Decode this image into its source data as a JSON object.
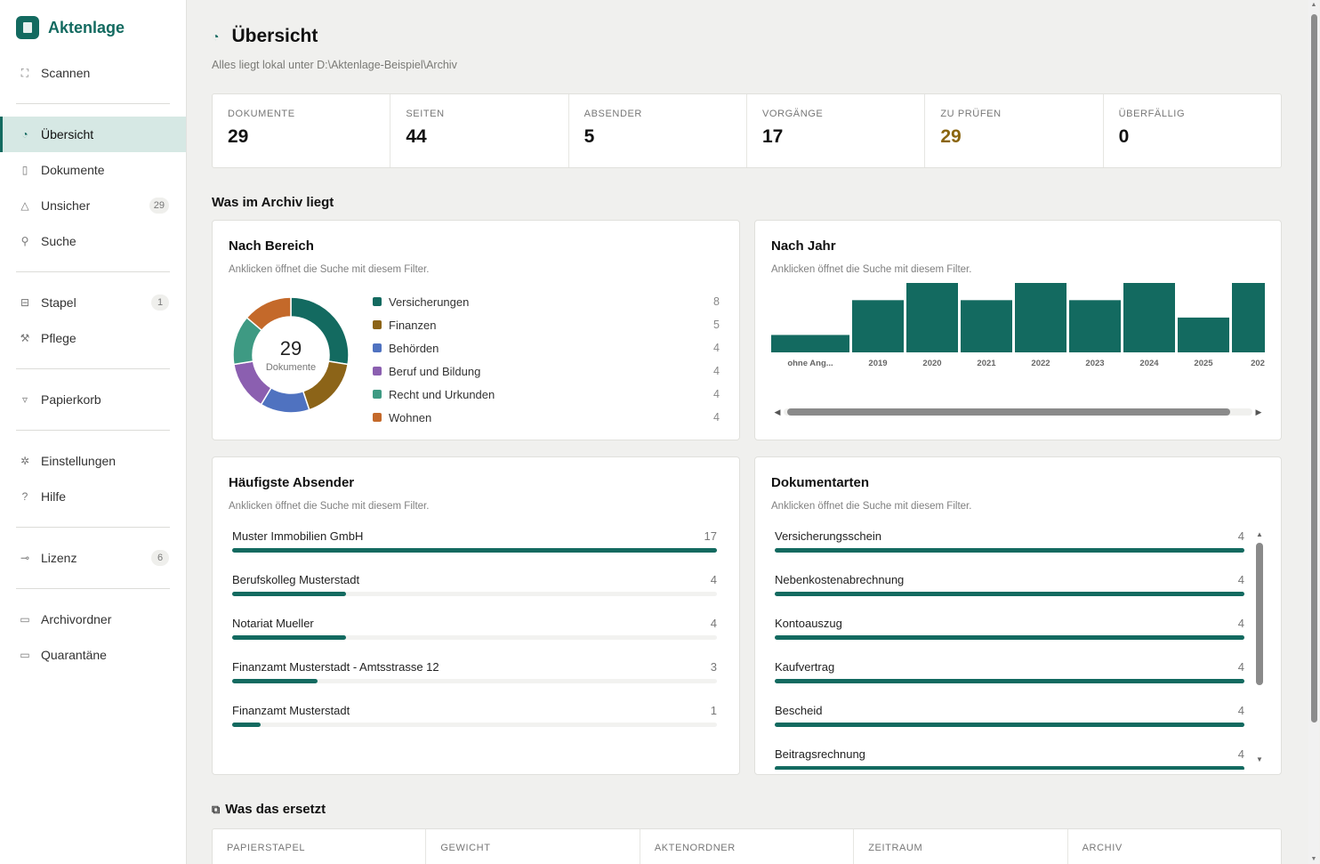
{
  "app": {
    "name": "Aktenlage"
  },
  "sidebar": {
    "items": [
      {
        "label": "Scannen",
        "icon": "scan-icon",
        "glyph": "⛶",
        "badge": ""
      },
      {
        "label": "Übersicht",
        "icon": "pie-chart-icon",
        "glyph": "◔",
        "badge": "",
        "active": true
      },
      {
        "label": "Dokumente",
        "icon": "document-icon",
        "glyph": "▯",
        "badge": ""
      },
      {
        "label": "Unsicher",
        "icon": "warning-icon",
        "glyph": "△",
        "badge": "29"
      },
      {
        "label": "Suche",
        "icon": "search-icon",
        "glyph": "⚲",
        "badge": ""
      },
      {
        "label": "Stapel",
        "icon": "inbox-icon",
        "glyph": "⊟",
        "badge": "1"
      },
      {
        "label": "Pflege",
        "icon": "wrench-icon",
        "glyph": "⚒",
        "badge": ""
      },
      {
        "label": "Papierkorb",
        "icon": "trash-icon",
        "glyph": "▿",
        "badge": ""
      },
      {
        "label": "Einstellungen",
        "icon": "gear-icon",
        "glyph": "✲",
        "badge": ""
      },
      {
        "label": "Hilfe",
        "icon": "help-icon",
        "glyph": "?",
        "badge": ""
      },
      {
        "label": "Lizenz",
        "icon": "key-icon",
        "glyph": "⊸",
        "badge": "6"
      },
      {
        "label": "Archivordner",
        "icon": "folder-icon",
        "glyph": "▭",
        "badge": ""
      },
      {
        "label": "Quarantäne",
        "icon": "folder-icon",
        "glyph": "▭",
        "badge": ""
      }
    ]
  },
  "header": {
    "title": "Übersicht",
    "subtitle": "Alles liegt lokal unter D:\\Aktenlage-Beispiel\\Archiv"
  },
  "stats": [
    {
      "label": "DOKUMENTE",
      "value": "29"
    },
    {
      "label": "SEITEN",
      "value": "44"
    },
    {
      "label": "ABSENDER",
      "value": "5"
    },
    {
      "label": "VORGÄNGE",
      "value": "17"
    },
    {
      "label": "ZU PRÜFEN",
      "value": "29",
      "warn": true
    },
    {
      "label": "ÜBERFÄLLIG",
      "value": "0"
    }
  ],
  "section_archive": "Was im Archiv liegt",
  "hint": "Anklicken öffnet die Suche mit diesem Filter.",
  "by_area": {
    "title": "Nach Bereich",
    "total": "29",
    "total_label": "Dokumente",
    "items": [
      {
        "label": "Versicherungen",
        "count": "8",
        "value": 8,
        "color": "#136a60"
      },
      {
        "label": "Finanzen",
        "count": "5",
        "value": 5,
        "color": "#8c6418"
      },
      {
        "label": "Behörden",
        "count": "4",
        "value": 4,
        "color": "#4f72c0"
      },
      {
        "label": "Beruf und Bildung",
        "count": "4",
        "value": 4,
        "color": "#8b5fb0"
      },
      {
        "label": "Recht und Urkunden",
        "count": "4",
        "value": 4,
        "color": "#3e9a83"
      },
      {
        "label": "Wohnen",
        "count": "4",
        "value": 4,
        "color": "#c4692a"
      }
    ]
  },
  "by_year": {
    "title": "Nach Jahr",
    "chart_data": {
      "type": "bar",
      "categories": [
        "ohne Ang...",
        "2019",
        "2020",
        "2021",
        "2022",
        "2023",
        "2024",
        "2025",
        "202"
      ],
      "values": [
        1,
        3,
        4,
        3,
        4,
        3,
        4,
        2,
        4.3
      ],
      "ylim": [
        0,
        4.5
      ]
    }
  },
  "senders": {
    "title": "Häufigste Absender",
    "max": 17,
    "items": [
      {
        "label": "Muster Immobilien GmbH",
        "count": "17",
        "value": 17
      },
      {
        "label": "Berufskolleg Musterstadt",
        "count": "4",
        "value": 4
      },
      {
        "label": "Notariat Mueller",
        "count": "4",
        "value": 4
      },
      {
        "label": "Finanzamt Musterstadt - Amtsstrasse 12",
        "count": "3",
        "value": 3
      },
      {
        "label": "Finanzamt Musterstadt",
        "count": "1",
        "value": 1
      }
    ]
  },
  "doc_types": {
    "title": "Dokumentarten",
    "max": 4,
    "items": [
      {
        "label": "Versicherungsschein",
        "count": "4",
        "value": 4
      },
      {
        "label": "Nebenkostenabrechnung",
        "count": "4",
        "value": 4
      },
      {
        "label": "Kontoauszug",
        "count": "4",
        "value": 4
      },
      {
        "label": "Kaufvertrag",
        "count": "4",
        "value": 4
      },
      {
        "label": "Bescheid",
        "count": "4",
        "value": 4
      },
      {
        "label": "Beitragsrechnung",
        "count": "4",
        "value": 4
      }
    ]
  },
  "replaces": {
    "title": "Was das ersetzt",
    "columns": [
      "PAPIERSTAPEL",
      "GEWICHT",
      "AKTENORDNER",
      "ZEITRAUM",
      "ARCHIV"
    ]
  }
}
